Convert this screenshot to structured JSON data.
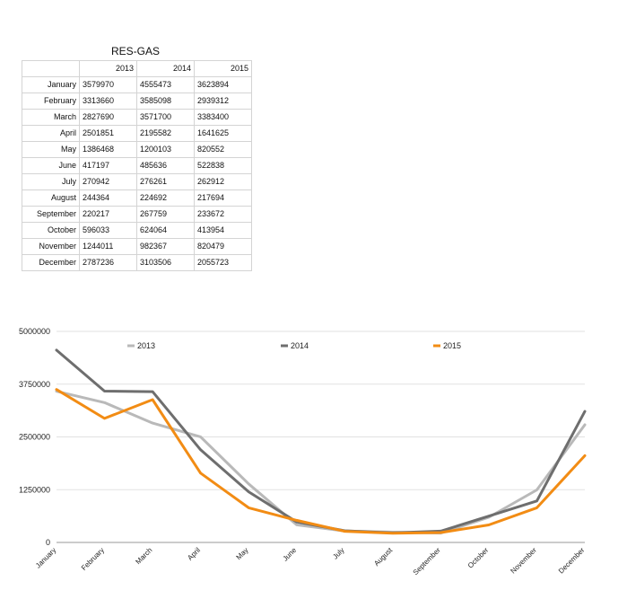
{
  "table": {
    "title": "RES-GAS",
    "columns": [
      "2013",
      "2014",
      "2015"
    ],
    "rows": [
      {
        "label": "January",
        "values": [
          "3579970",
          "4555473",
          "3623894"
        ]
      },
      {
        "label": "February",
        "values": [
          "3313660",
          "3585098",
          "2939312"
        ]
      },
      {
        "label": "March",
        "values": [
          "2827690",
          "3571700",
          "3383400"
        ]
      },
      {
        "label": "April",
        "values": [
          "2501851",
          "2195582",
          "1641625"
        ]
      },
      {
        "label": "May",
        "values": [
          "1386468",
          "1200103",
          "820552"
        ]
      },
      {
        "label": "June",
        "values": [
          "417197",
          "485636",
          "522838"
        ]
      },
      {
        "label": "July",
        "values": [
          "270942",
          "276261",
          "262912"
        ]
      },
      {
        "label": "August",
        "values": [
          "244364",
          "224692",
          "217694"
        ]
      },
      {
        "label": "September",
        "values": [
          "220217",
          "267759",
          "233672"
        ]
      },
      {
        "label": "October",
        "values": [
          "596033",
          "624064",
          "413954"
        ]
      },
      {
        "label": "November",
        "values": [
          "1244011",
          "982367",
          "820479"
        ]
      },
      {
        "label": "December",
        "values": [
          "2787236",
          "3103506",
          "2055723"
        ]
      }
    ]
  },
  "chart_data": {
    "type": "line",
    "categories": [
      "January",
      "February",
      "March",
      "April",
      "May",
      "June",
      "July",
      "August",
      "September",
      "October",
      "November",
      "December"
    ],
    "series": [
      {
        "name": "2013",
        "color": "#b9b9b9",
        "values": [
          3579970,
          3313660,
          2827690,
          2501851,
          1386468,
          417197,
          270942,
          244364,
          220217,
          596033,
          1244011,
          2787236
        ]
      },
      {
        "name": "2014",
        "color": "#6e6e6e",
        "values": [
          4555473,
          3585098,
          3571700,
          2195582,
          1200103,
          485636,
          276261,
          224692,
          267759,
          624064,
          982367,
          3103506
        ]
      },
      {
        "name": "2015",
        "color": "#f28c14",
        "values": [
          3623894,
          2939312,
          3383400,
          1641625,
          820552,
          522838,
          262912,
          217694,
          233672,
          413954,
          820479,
          2055723
        ]
      }
    ],
    "yticks": [
      "0",
      "1250000",
      "2500000",
      "3750000",
      "5000000"
    ],
    "ylim": [
      0,
      5000000
    ],
    "grid": true,
    "legend": "top"
  }
}
